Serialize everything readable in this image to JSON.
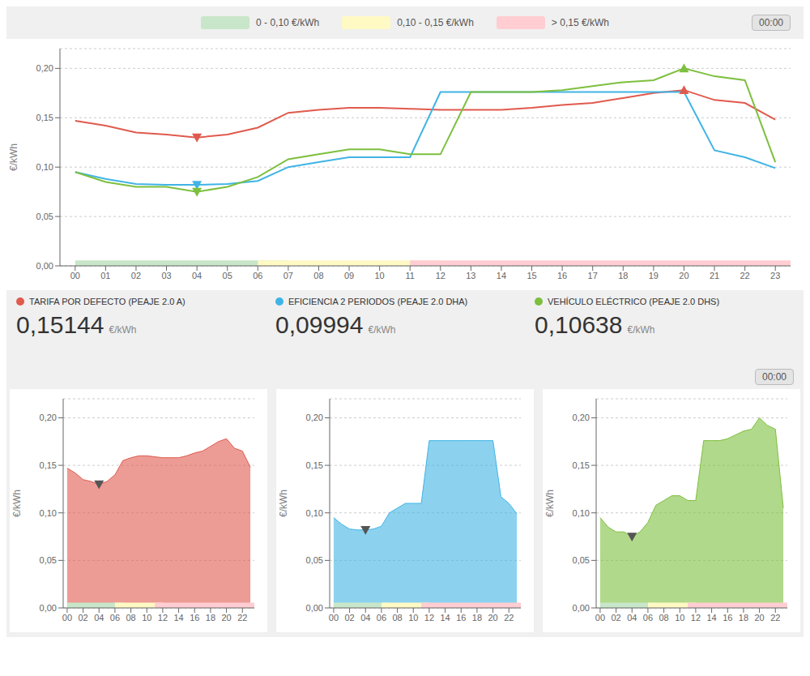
{
  "chart_data": [
    {
      "type": "line",
      "x": [
        0,
        1,
        2,
        3,
        4,
        5,
        6,
        7,
        8,
        9,
        10,
        11,
        12,
        13,
        14,
        15,
        16,
        17,
        18,
        19,
        20,
        21,
        22,
        23
      ],
      "series": [
        {
          "name": "TARIFA POR DEFECTO (PEAJE 2.0 A)",
          "color": "#e05a4e",
          "values": [
            0.147,
            0.142,
            0.135,
            0.133,
            0.13,
            0.133,
            0.14,
            0.155,
            0.158,
            0.16,
            0.16,
            0.159,
            0.158,
            0.158,
            0.158,
            0.16,
            0.163,
            0.165,
            0.17,
            0.175,
            0.178,
            0.168,
            0.165,
            0.148
          ],
          "current_value": {
            "value": 0.15144,
            "label": "0,15144"
          },
          "markers": [
            {
              "x": 4,
              "y": 0.13,
              "marker": "triangle-down"
            },
            {
              "x": 20,
              "y": 0.178,
              "marker": "triangle-up"
            }
          ]
        },
        {
          "name": "EFICIENCIA 2 PERIODOS (PEAJE 2.0 DHA)",
          "color": "#40b4e5",
          "values": [
            0.095,
            0.088,
            0.083,
            0.082,
            0.082,
            0.083,
            0.086,
            0.1,
            0.105,
            0.11,
            0.11,
            0.11,
            0.176,
            0.176,
            0.176,
            0.176,
            0.176,
            0.176,
            0.176,
            0.176,
            0.176,
            0.117,
            0.11,
            0.099
          ],
          "current_value": {
            "value": 0.09994,
            "label": "0,09994"
          },
          "markers": [
            {
              "x": 4,
              "y": 0.082,
              "marker": "triangle-down"
            }
          ]
        },
        {
          "name": "VEHÍCULO ELÉCTRICO (PEAJE 2.0 DHS)",
          "color": "#7dbf3e",
          "values": [
            0.095,
            0.085,
            0.08,
            0.08,
            0.075,
            0.08,
            0.09,
            0.108,
            0.113,
            0.118,
            0.118,
            0.113,
            0.113,
            0.176,
            0.176,
            0.176,
            0.178,
            0.182,
            0.186,
            0.188,
            0.2,
            0.192,
            0.188,
            0.105
          ],
          "current_value": {
            "value": 0.10638,
            "label": "0,10638"
          },
          "markers": [
            {
              "x": 4,
              "y": 0.075,
              "marker": "triangle-down"
            },
            {
              "x": 20,
              "y": 0.2,
              "marker": "triangle-up"
            }
          ]
        }
      ],
      "value_unit": "€/kWh",
      "y_label": "€/kWh",
      "xlim": [
        -0.5,
        23.5
      ],
      "xticks": [
        {
          "value": 0,
          "label": "00"
        },
        {
          "value": 1,
          "label": "01"
        },
        {
          "value": 2,
          "label": "02"
        },
        {
          "value": 3,
          "label": "03"
        },
        {
          "value": 4,
          "label": "04"
        },
        {
          "value": 5,
          "label": "05"
        },
        {
          "value": 6,
          "label": "06"
        },
        {
          "value": 7,
          "label": "07"
        },
        {
          "value": 8,
          "label": "08"
        },
        {
          "value": 9,
          "label": "09"
        },
        10,
        11,
        12,
        13,
        14,
        15,
        16,
        17,
        18,
        19,
        20,
        21,
        22,
        23
      ],
      "ylim": [
        0,
        0.22
      ],
      "yticks": [
        {
          "value": 0.0,
          "label": "0,00"
        },
        {
          "value": 0.05,
          "label": "0,05"
        },
        {
          "value": 0.1,
          "label": "0,10"
        },
        {
          "value": 0.15,
          "label": "0,15"
        },
        {
          "value": 0.2,
          "label": "0,20"
        }
      ],
      "grid": true,
      "bands": [
        {
          "from": 0,
          "to": 7,
          "color": "#c8e6c9",
          "label": "0 - 0,10 €/kWh"
        },
        {
          "from": 6,
          "to": 12,
          "color": "#fff9c4",
          "label": "0,10 - 0,15 €/kWh"
        },
        {
          "from": 11,
          "to": 24,
          "color": "#ffcdd2",
          "label": "> 0,15 €/kWh"
        }
      ],
      "annotations": [
        "00:00"
      ]
    },
    {
      "type": "area",
      "x": [
        0,
        1,
        2,
        3,
        4,
        5,
        6,
        7,
        8,
        9,
        10,
        11,
        12,
        13,
        14,
        15,
        16,
        17,
        18,
        19,
        20,
        21,
        22,
        23
      ],
      "values": [
        0.147,
        0.142,
        0.135,
        0.133,
        0.13,
        0.133,
        0.14,
        0.155,
        0.158,
        0.16,
        0.16,
        0.159,
        0.158,
        0.158,
        0.158,
        0.16,
        0.163,
        0.165,
        0.17,
        0.175,
        0.178,
        0.168,
        0.165,
        0.148
      ],
      "color": "#e05a4e",
      "markers": [
        {
          "x": 4,
          "y": 0.13,
          "marker": "triangle-down",
          "color": "#555555"
        }
      ],
      "y_label": "€/kWh",
      "xlim": [
        -0.5,
        23.5
      ],
      "xticks": [
        {
          "value": 0,
          "label": "00"
        },
        {
          "value": 2,
          "label": "02"
        },
        {
          "value": 4,
          "label": "04"
        },
        {
          "value": 6,
          "label": "06"
        },
        {
          "value": 8,
          "label": "08"
        },
        10,
        12,
        14,
        16,
        18,
        20,
        22
      ],
      "ylim": [
        0,
        0.22
      ],
      "yticks": [
        {
          "value": 0.0,
          "label": "0,00"
        },
        {
          "value": 0.05,
          "label": "0,05"
        },
        {
          "value": 0.1,
          "label": "0,10"
        },
        {
          "value": 0.15,
          "label": "0,15"
        },
        {
          "value": 0.2,
          "label": "0,20"
        }
      ],
      "grid": true,
      "bands": [
        {
          "from": 0,
          "to": 7,
          "color": "#c8e6c9"
        },
        {
          "from": 6,
          "to": 12,
          "color": "#fff9c4"
        },
        {
          "from": 11,
          "to": 24,
          "color": "#ffcdd2"
        }
      ]
    },
    {
      "type": "area",
      "x": [
        0,
        1,
        2,
        3,
        4,
        5,
        6,
        7,
        8,
        9,
        10,
        11,
        12,
        13,
        14,
        15,
        16,
        17,
        18,
        19,
        20,
        21,
        22,
        23
      ],
      "values": [
        0.095,
        0.088,
        0.083,
        0.082,
        0.082,
        0.083,
        0.086,
        0.1,
        0.105,
        0.11,
        0.11,
        0.11,
        0.176,
        0.176,
        0.176,
        0.176,
        0.176,
        0.176,
        0.176,
        0.176,
        0.176,
        0.117,
        0.11,
        0.099
      ],
      "color": "#40b4e5",
      "markers": [
        {
          "x": 4,
          "y": 0.082,
          "marker": "triangle-down",
          "color": "#555555"
        }
      ],
      "y_label": "€/kWh",
      "xlim": [
        -0.5,
        23.5
      ],
      "xticks": [
        {
          "value": 0,
          "label": "00"
        },
        {
          "value": 2,
          "label": "02"
        },
        {
          "value": 4,
          "label": "04"
        },
        {
          "value": 6,
          "label": "06"
        },
        {
          "value": 8,
          "label": "08"
        },
        10,
        12,
        14,
        16,
        18,
        20,
        22
      ],
      "ylim": [
        0,
        0.22
      ],
      "yticks": [
        {
          "value": 0.0,
          "label": "0,00"
        },
        {
          "value": 0.05,
          "label": "0,05"
        },
        {
          "value": 0.1,
          "label": "0,10"
        },
        {
          "value": 0.15,
          "label": "0,15"
        },
        {
          "value": 0.2,
          "label": "0,20"
        }
      ],
      "grid": true,
      "bands": [
        {
          "from": 0,
          "to": 7,
          "color": "#c8e6c9"
        },
        {
          "from": 6,
          "to": 12,
          "color": "#fff9c4"
        },
        {
          "from": 11,
          "to": 24,
          "color": "#ffcdd2"
        }
      ]
    },
    {
      "type": "area",
      "x": [
        0,
        1,
        2,
        3,
        4,
        5,
        6,
        7,
        8,
        9,
        10,
        11,
        12,
        13,
        14,
        15,
        16,
        17,
        18,
        19,
        20,
        21,
        22,
        23
      ],
      "values": [
        0.095,
        0.085,
        0.08,
        0.08,
        0.075,
        0.08,
        0.09,
        0.108,
        0.113,
        0.118,
        0.118,
        0.113,
        0.113,
        0.176,
        0.176,
        0.176,
        0.178,
        0.182,
        0.186,
        0.188,
        0.2,
        0.192,
        0.188,
        0.105
      ],
      "color": "#7dbf3e",
      "markers": [
        {
          "x": 4,
          "y": 0.075,
          "marker": "triangle-down",
          "color": "#555555"
        }
      ],
      "y_label": "€/kWh",
      "xlim": [
        -0.5,
        23.5
      ],
      "xticks": [
        {
          "value": 0,
          "label": "00"
        },
        {
          "value": 2,
          "label": "02"
        },
        {
          "value": 4,
          "label": "04"
        },
        {
          "value": 6,
          "label": "06"
        },
        {
          "value": 8,
          "label": "08"
        },
        10,
        12,
        14,
        16,
        18,
        20,
        22
      ],
      "ylim": [
        0,
        0.22
      ],
      "yticks": [
        {
          "value": 0.0,
          "label": "0,00"
        },
        {
          "value": 0.05,
          "label": "0,05"
        },
        {
          "value": 0.1,
          "label": "0,10"
        },
        {
          "value": 0.15,
          "label": "0,15"
        },
        {
          "value": 0.2,
          "label": "0,20"
        }
      ],
      "grid": true,
      "bands": [
        {
          "from": 0,
          "to": 7,
          "color": "#c8e6c9"
        },
        {
          "from": 6,
          "to": 12,
          "color": "#fff9c4"
        },
        {
          "from": 11,
          "to": 24,
          "color": "#ffcdd2"
        }
      ],
      "annotations": [
        "00:00"
      ]
    }
  ]
}
